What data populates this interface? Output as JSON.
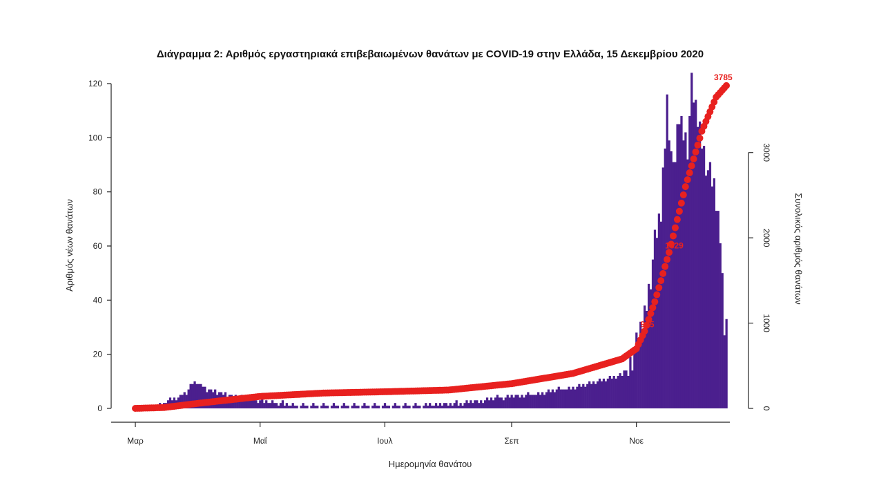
{
  "chart_data": {
    "type": "bar",
    "title": "Διάγραμμα 2: Αριθμός εργαστηριακά επιβεβαιωμένων θανάτων με COVID-19 στην Ελλάδα, 15 Δεκεμβρίου 2020",
    "xlabel": "Ημερομηνία θανάτου",
    "ylabel": "Αριθμός νέων θανάτων",
    "y2label": "Συνολικός αριθμός θανάτων",
    "ylim": [
      0,
      120
    ],
    "y2lim": [
      0,
      3800
    ],
    "yticks": [
      0,
      20,
      40,
      60,
      80,
      100,
      120
    ],
    "y2ticks": [
      0,
      1000,
      2000,
      3000
    ],
    "x_start": "2020-03-01",
    "x_end": "2020-12-15",
    "month_ticks": [
      {
        "label": "Μαρ",
        "date": "2020-03-01"
      },
      {
        "label": "Μαΐ",
        "date": "2020-05-01"
      },
      {
        "label": "Ιουλ",
        "date": "2020-07-01"
      },
      {
        "label": "Σεπ",
        "date": "2020-09-01"
      },
      {
        "label": "Νοε",
        "date": "2020-11-01"
      }
    ],
    "daily_anchors": [
      {
        "date": "2020-03-11",
        "value": 1
      },
      {
        "date": "2020-03-22",
        "value": 4
      },
      {
        "date": "2020-03-26",
        "value": 6
      },
      {
        "date": "2020-03-30",
        "value": 10
      },
      {
        "date": "2020-04-05",
        "value": 7
      },
      {
        "date": "2020-04-15",
        "value": 5
      },
      {
        "date": "2020-04-30",
        "value": 3
      },
      {
        "date": "2020-05-20",
        "value": 1
      },
      {
        "date": "2020-07-15",
        "value": 1
      },
      {
        "date": "2020-08-10",
        "value": 2
      },
      {
        "date": "2020-08-25",
        "value": 4
      },
      {
        "date": "2020-09-10",
        "value": 5
      },
      {
        "date": "2020-09-25",
        "value": 7
      },
      {
        "date": "2020-10-10",
        "value": 9
      },
      {
        "date": "2020-10-25",
        "value": 12
      },
      {
        "date": "2020-11-01",
        "value": 22
      },
      {
        "date": "2020-11-04",
        "value": 30
      },
      {
        "date": "2020-11-07",
        "value": 45
      },
      {
        "date": "2020-11-10",
        "value": 60
      },
      {
        "date": "2020-11-13",
        "value": 72
      },
      {
        "date": "2020-11-16",
        "value": 115
      },
      {
        "date": "2020-11-19",
        "value": 85
      },
      {
        "date": "2020-11-22",
        "value": 108
      },
      {
        "date": "2020-11-26",
        "value": 98
      },
      {
        "date": "2020-11-28",
        "value": 118
      },
      {
        "date": "2020-11-30",
        "value": 110
      },
      {
        "date": "2020-12-03",
        "value": 100
      },
      {
        "date": "2020-12-06",
        "value": 88
      },
      {
        "date": "2020-12-09",
        "value": 81
      },
      {
        "date": "2020-12-12",
        "value": 65
      },
      {
        "date": "2020-12-14",
        "value": 33
      }
    ],
    "cumulative_anchors": [
      {
        "date": "2020-03-01",
        "value": 0
      },
      {
        "date": "2020-03-15",
        "value": 10
      },
      {
        "date": "2020-04-01",
        "value": 60
      },
      {
        "date": "2020-05-01",
        "value": 140
      },
      {
        "date": "2020-06-01",
        "value": 180
      },
      {
        "date": "2020-07-01",
        "value": 195
      },
      {
        "date": "2020-08-01",
        "value": 215
      },
      {
        "date": "2020-09-01",
        "value": 290
      },
      {
        "date": "2020-10-01",
        "value": 410
      },
      {
        "date": "2020-10-25",
        "value": 580
      },
      {
        "date": "2020-11-01",
        "value": 700
      },
      {
        "date": "2020-11-05",
        "value": 905
      },
      {
        "date": "2020-11-10",
        "value": 1250
      },
      {
        "date": "2020-11-17",
        "value": 1829
      },
      {
        "date": "2020-11-25",
        "value": 2600
      },
      {
        "date": "2020-12-03",
        "value": 3250
      },
      {
        "date": "2020-12-10",
        "value": 3650
      },
      {
        "date": "2020-12-15",
        "value": 3785
      }
    ],
    "cumulative_labels": [
      {
        "date": "2020-11-05",
        "value": 905,
        "text": "905"
      },
      {
        "date": "2020-11-17",
        "value": 1829,
        "text": "1829"
      },
      {
        "date": "2020-12-15",
        "value": 3785,
        "text": "3785"
      }
    ],
    "colors": {
      "bars": "#4b1f8e",
      "cumulative": "#e8211f",
      "axis": "#222222"
    }
  }
}
